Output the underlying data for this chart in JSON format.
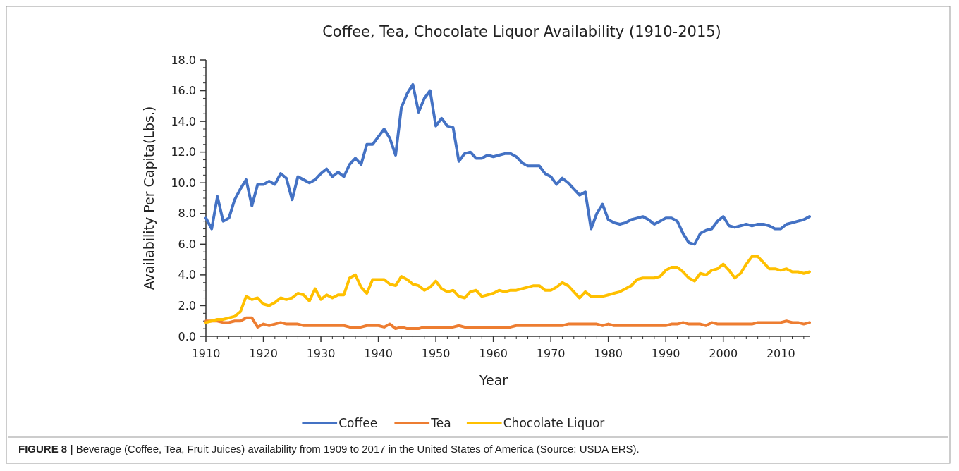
{
  "chart_data": {
    "type": "line",
    "title": "Coffee, Tea, Chocolate Liquor Availability (1910-2015)",
    "xlabel": "Year",
    "ylabel": "Availability Per Capita(Lbs.)",
    "annotations": [
      "FIGURE 8 | Beverage (Coffee, Tea, Fruit Juices) availability from 1909 to 2017 in the United States of America (Source: USDA ERS)."
    ],
    "x": [
      1910,
      1911,
      1912,
      1913,
      1914,
      1915,
      1916,
      1917,
      1918,
      1919,
      1920,
      1921,
      1922,
      1923,
      1924,
      1925,
      1926,
      1927,
      1928,
      1929,
      1930,
      1931,
      1932,
      1933,
      1934,
      1935,
      1936,
      1937,
      1938,
      1939,
      1940,
      1941,
      1942,
      1943,
      1944,
      1945,
      1946,
      1947,
      1948,
      1949,
      1950,
      1951,
      1952,
      1953,
      1954,
      1955,
      1956,
      1957,
      1958,
      1959,
      1960,
      1961,
      1962,
      1963,
      1964,
      1965,
      1966,
      1967,
      1968,
      1969,
      1970,
      1971,
      1972,
      1973,
      1974,
      1975,
      1976,
      1977,
      1978,
      1979,
      1980,
      1981,
      1982,
      1983,
      1984,
      1985,
      1986,
      1987,
      1988,
      1989,
      1990,
      1991,
      1992,
      1993,
      1994,
      1995,
      1996,
      1997,
      1998,
      1999,
      2000,
      2001,
      2002,
      2003,
      2004,
      2005,
      2006,
      2007,
      2008,
      2009,
      2010,
      2011,
      2012,
      2013,
      2014,
      2015
    ],
    "series": [
      {
        "name": "Coffee",
        "color": "#4472c4",
        "values": [
          7.7,
          7.0,
          9.1,
          7.5,
          7.7,
          8.9,
          9.6,
          10.2,
          8.5,
          9.9,
          9.9,
          10.1,
          9.9,
          10.6,
          10.3,
          8.9,
          10.4,
          10.2,
          10.0,
          10.2,
          10.6,
          10.9,
          10.4,
          10.7,
          10.4,
          11.2,
          11.6,
          11.2,
          12.5,
          12.5,
          13.0,
          13.5,
          12.9,
          11.8,
          14.9,
          15.8,
          16.4,
          14.6,
          15.5,
          16.0,
          13.7,
          14.2,
          13.7,
          13.6,
          11.4,
          11.9,
          12.0,
          11.6,
          11.6,
          11.8,
          11.7,
          11.8,
          11.9,
          11.9,
          11.7,
          11.3,
          11.1,
          11.1,
          11.1,
          10.6,
          10.4,
          9.9,
          10.3,
          10.0,
          9.6,
          9.2,
          9.4,
          7.0,
          8.0,
          8.6,
          7.6,
          7.4,
          7.3,
          7.4,
          7.6,
          7.7,
          7.8,
          7.6,
          7.3,
          7.5,
          7.7,
          7.7,
          7.5,
          6.7,
          6.1,
          6.0,
          6.7,
          6.9,
          7.0,
          7.5,
          7.8,
          7.2,
          7.1,
          7.2,
          7.3,
          7.2,
          7.3,
          7.3,
          7.2,
          7.0,
          7.0,
          7.3,
          7.4,
          7.5,
          7.6,
          7.8
        ]
      },
      {
        "name": "Tea",
        "color": "#ed7d31",
        "values": [
          1.0,
          1.0,
          1.0,
          0.9,
          0.9,
          1.0,
          1.0,
          1.2,
          1.2,
          0.6,
          0.8,
          0.7,
          0.8,
          0.9,
          0.8,
          0.8,
          0.8,
          0.7,
          0.7,
          0.7,
          0.7,
          0.7,
          0.7,
          0.7,
          0.7,
          0.6,
          0.6,
          0.6,
          0.7,
          0.7,
          0.7,
          0.6,
          0.8,
          0.5,
          0.6,
          0.5,
          0.5,
          0.5,
          0.6,
          0.6,
          0.6,
          0.6,
          0.6,
          0.6,
          0.7,
          0.6,
          0.6,
          0.6,
          0.6,
          0.6,
          0.6,
          0.6,
          0.6,
          0.6,
          0.7,
          0.7,
          0.7,
          0.7,
          0.7,
          0.7,
          0.7,
          0.7,
          0.7,
          0.8,
          0.8,
          0.8,
          0.8,
          0.8,
          0.8,
          0.7,
          0.8,
          0.7,
          0.7,
          0.7,
          0.7,
          0.7,
          0.7,
          0.7,
          0.7,
          0.7,
          0.7,
          0.8,
          0.8,
          0.9,
          0.8,
          0.8,
          0.8,
          0.7,
          0.9,
          0.8,
          0.8,
          0.8,
          0.8,
          0.8,
          0.8,
          0.8,
          0.9,
          0.9,
          0.9,
          0.9,
          0.9,
          1.0,
          0.9,
          0.9,
          0.8,
          0.9
        ]
      },
      {
        "name": "Chocolate Liquor",
        "color": "#ffc000",
        "values": [
          0.9,
          1.0,
          1.1,
          1.1,
          1.2,
          1.3,
          1.6,
          2.6,
          2.4,
          2.5,
          2.1,
          2.0,
          2.2,
          2.5,
          2.4,
          2.5,
          2.8,
          2.7,
          2.3,
          3.1,
          2.4,
          2.7,
          2.5,
          2.7,
          2.7,
          3.8,
          4.0,
          3.2,
          2.8,
          3.7,
          3.7,
          3.7,
          3.4,
          3.3,
          3.9,
          3.7,
          3.4,
          3.3,
          3.0,
          3.2,
          3.6,
          3.1,
          2.9,
          3.0,
          2.6,
          2.5,
          2.9,
          3.0,
          2.6,
          2.7,
          2.8,
          3.0,
          2.9,
          3.0,
          3.0,
          3.1,
          3.2,
          3.3,
          3.3,
          3.0,
          3.0,
          3.2,
          3.5,
          3.3,
          2.9,
          2.5,
          2.9,
          2.6,
          2.6,
          2.6,
          2.7,
          2.8,
          2.9,
          3.1,
          3.3,
          3.7,
          3.8,
          3.8,
          3.8,
          3.9,
          4.3,
          4.5,
          4.5,
          4.2,
          3.8,
          3.6,
          4.1,
          4.0,
          4.3,
          4.4,
          4.7,
          4.3,
          3.8,
          4.1,
          4.7,
          5.2,
          5.2,
          4.8,
          4.4,
          4.4,
          4.3,
          4.4,
          4.2,
          4.2,
          4.1,
          4.2
        ]
      }
    ],
    "xlim": [
      1910,
      2015
    ],
    "xticks": [
      1910,
      1920,
      1930,
      1940,
      1950,
      1960,
      1970,
      1980,
      1990,
      2000,
      2010
    ],
    "ylim": [
      0,
      18
    ],
    "yticks": [
      {
        "value": 0,
        "label": "0.0"
      },
      {
        "value": 2,
        "label": "2.0"
      },
      {
        "value": 4,
        "label": "4.0"
      },
      {
        "value": 6,
        "label": "6.0"
      },
      {
        "value": 8,
        "label": "8.0"
      },
      {
        "value": 10,
        "label": "10.0"
      },
      {
        "value": 12,
        "label": "12.0"
      },
      {
        "value": 14,
        "label": "14.0"
      },
      {
        "value": 16,
        "label": "16.0"
      },
      {
        "value": 18,
        "label": "18.0"
      }
    ],
    "grid": false,
    "legend": "bottom",
    "marker": "none",
    "line_style": "solid"
  }
}
